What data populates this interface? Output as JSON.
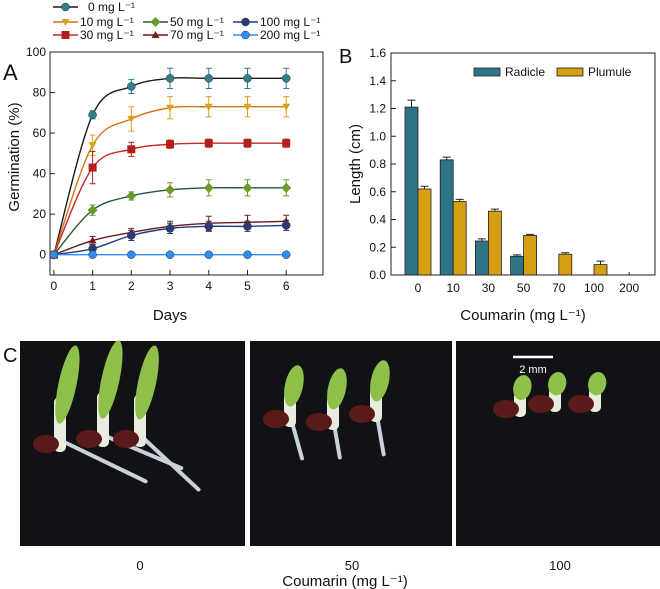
{
  "panel_labels": {
    "a": "A",
    "b": "B",
    "c": "C"
  },
  "chart_data": [
    {
      "type": "line",
      "panel": "A",
      "xlabel": "Days",
      "ylabel": "Germination (%)",
      "xlim": [
        -0.1,
        6.95
      ],
      "ylim": [
        -10,
        100
      ],
      "xticks": [
        0,
        1,
        2,
        3,
        4,
        5,
        6
      ],
      "yticks": [
        0,
        20,
        40,
        60,
        80,
        100
      ],
      "x": [
        0,
        1,
        2,
        3,
        4,
        5,
        6
      ],
      "legend_position": "top",
      "series": [
        {
          "name": "0 mg L⁻¹",
          "marker": "circle",
          "color": "#2f7f8c",
          "line_color": "#1a1a1a",
          "values": [
            0,
            69,
            83,
            87,
            87,
            87,
            87
          ],
          "errors": [
            0,
            2,
            3.5,
            5,
            5,
            5,
            5
          ]
        },
        {
          "name": "10 mg L⁻¹",
          "marker": "triangle-down",
          "color": "#d9a21c",
          "line_color": "#d9741c",
          "values": [
            0,
            54,
            67,
            72.5,
            73,
            73,
            73
          ],
          "errors": [
            0,
            5,
            6,
            5.5,
            5,
            5,
            5
          ]
        },
        {
          "name": "30 mg L⁻¹",
          "marker": "square",
          "color": "#b3201c",
          "line_color": "#c42a22",
          "values": [
            0,
            43,
            52,
            54.5,
            55,
            55,
            55
          ],
          "errors": [
            0,
            8,
            3.5,
            2,
            2,
            2,
            2
          ]
        },
        {
          "name": "50 mg L⁻¹",
          "marker": "diamond",
          "color": "#6a9a2a",
          "line_color": "#1f5a2a",
          "values": [
            0,
            22,
            29,
            32,
            33,
            33,
            33
          ],
          "errors": [
            0,
            2.5,
            2,
            3.5,
            4,
            4,
            4
          ]
        },
        {
          "name": "70 mg L⁻¹",
          "marker": "triangle-up",
          "color": "#7a1c1c",
          "line_color": "#6a1a1a",
          "values": [
            0,
            7,
            11,
            14,
            15.5,
            16,
            16.5
          ],
          "errors": [
            0,
            2,
            2,
            2.5,
            3.5,
            3.5,
            3
          ]
        },
        {
          "name": "100 mg L⁻¹",
          "marker": "circle",
          "color": "#2a3a78",
          "line_color": "#1f3a8a",
          "values": [
            0,
            3,
            9.5,
            13,
            14,
            14,
            14.5
          ],
          "errors": [
            0,
            2,
            2.5,
            2.5,
            2.5,
            2.5,
            2.5
          ]
        },
        {
          "name": "200 mg L⁻¹",
          "marker": "circle",
          "color": "#2f8cf0",
          "line_color": "#2f8cf0",
          "values": [
            0,
            0,
            0,
            0,
            0,
            0,
            0
          ],
          "errors": [
            0,
            0,
            0,
            0,
            0,
            0,
            0
          ]
        }
      ]
    },
    {
      "type": "bar",
      "panel": "B",
      "xlabel": "Coumarin (mg L⁻¹)",
      "ylabel": "Length (cm)",
      "ylim": [
        0,
        1.6
      ],
      "yticks": [
        "0.0",
        "0.2",
        "0.4",
        "0.6",
        "0.8",
        "1.0",
        "1.2",
        "1.4",
        "1.6"
      ],
      "categories": [
        "0",
        "10",
        "30",
        "50",
        "70",
        "100",
        "200"
      ],
      "legend_position": "top-right",
      "series": [
        {
          "name": "Radicle",
          "color": "#2f7486",
          "values": [
            1.21,
            0.83,
            0.245,
            0.135,
            0,
            0,
            0
          ],
          "errors": [
            0.05,
            0.02,
            0.015,
            0.01,
            0,
            0,
            0
          ]
        },
        {
          "name": "Plumule",
          "color": "#d69e12",
          "values": [
            0.62,
            0.53,
            0.46,
            0.285,
            0.15,
            0.075,
            0
          ],
          "errors": [
            0.02,
            0.015,
            0.015,
            0.008,
            0.01,
            0.025,
            0
          ]
        }
      ]
    }
  ],
  "photos": {
    "labels": [
      "0",
      "50",
      "100"
    ],
    "xlabel": "Coumarin (mg L⁻¹)",
    "scale_bar": "2 mm"
  }
}
